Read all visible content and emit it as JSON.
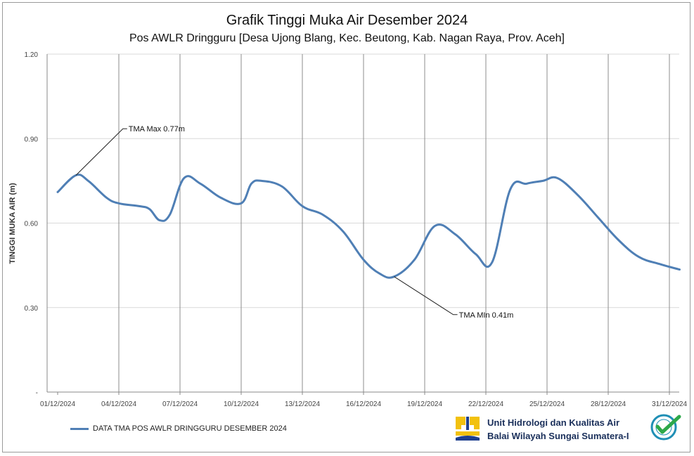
{
  "chart_data": {
    "type": "line",
    "title": "Grafik Tinggi Muka Air Desember 2024",
    "subtitle": "Pos AWLR Dringguru [Desa Ujong Blang, Kec. Beutong, Kab. Nagan Raya, Prov. Aceh]",
    "ylabel": "TINGGI MUKA AIR (m)",
    "xlabel": "",
    "ylim": [
      0,
      1.2
    ],
    "xlim": [
      0,
      31
    ],
    "yticks": [
      0,
      0.3,
      0.6,
      0.9,
      1.2
    ],
    "ytick_labels": [
      "-",
      "0.30",
      "0.60",
      "0.90",
      "1.20"
    ],
    "xticks": [
      1,
      4,
      7,
      10,
      13,
      16,
      19,
      22,
      25,
      28,
      31
    ],
    "xtick_labels": [
      "01/12/2024",
      "04/12/2024",
      "07/12/2024",
      "10/12/2024",
      "13/12/2024",
      "16/12/2024",
      "19/12/2024",
      "22/12/2024",
      "25/12/2024",
      "28/12/2024",
      "31/12/2024"
    ],
    "grid": "horizontal and vertical",
    "legend_position": "bottom-left",
    "series": [
      {
        "name": "DATA TMA POS AWLR DRINGGURU DESEMBER 2024",
        "color": "#4f7fb5",
        "x": [
          1,
          1.9,
          2.5,
          3.4,
          4,
          5,
          5.5,
          6,
          6.5,
          7.2,
          8,
          9,
          10,
          10.5,
          11,
          12,
          13,
          14,
          15,
          16,
          16.8,
          17.5,
          18.5,
          19.5,
          20.5,
          21.5,
          22.3,
          23.2,
          24,
          24.8,
          25.5,
          26.5,
          27.5,
          28.5,
          29.5,
          30.5,
          31.5
        ],
        "y": [
          0.71,
          0.77,
          0.75,
          0.69,
          0.67,
          0.66,
          0.65,
          0.61,
          0.63,
          0.76,
          0.74,
          0.69,
          0.67,
          0.74,
          0.75,
          0.73,
          0.66,
          0.63,
          0.57,
          0.47,
          0.42,
          0.41,
          0.47,
          0.59,
          0.56,
          0.49,
          0.46,
          0.72,
          0.74,
          0.75,
          0.76,
          0.7,
          0.62,
          0.54,
          0.48,
          0.455,
          0.435
        ]
      }
    ],
    "annotations": [
      {
        "text": "TMA Max 0.77m",
        "x": 1.9,
        "y": 0.77,
        "text_x": 4.2,
        "text_y": 0.935
      },
      {
        "text": "TMA MIn 0.41m",
        "x": 17.5,
        "y": 0.41,
        "text_x": 20.4,
        "text_y": 0.275
      }
    ]
  },
  "footer": {
    "org_line1": "Unit Hidrologi dan Kualitas Air",
    "org_line2": "Balai Wilayah Sungai Sumatera-I"
  },
  "icons": {
    "logo": "pupr-logo-icon",
    "badge": "iso-certified-badge-icon"
  },
  "colors": {
    "series": "#4f7fb5",
    "grid": "#d9d9d9",
    "vgrid": "#8c8c8c",
    "logo_yellow": "#f2c10e",
    "logo_blue": "#1d3f8f",
    "badge_teal": "#1f8fb5",
    "badge_green": "#2da84a"
  }
}
